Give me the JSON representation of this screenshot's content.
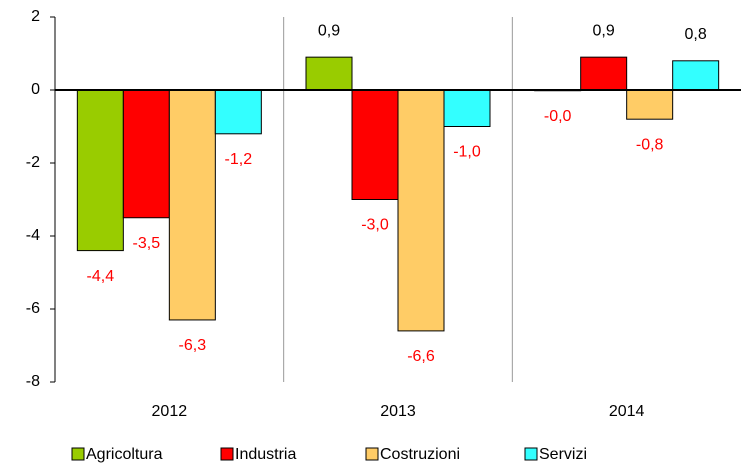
{
  "chart_data": {
    "type": "bar",
    "categories": [
      "2012",
      "2013",
      "2014"
    ],
    "series": [
      {
        "name": "Agricoltura",
        "color": "#99cc00",
        "values": [
          -4.4,
          0.9,
          -0.02
        ],
        "value_labels": [
          "-4,4",
          "0,9",
          "-0,0"
        ]
      },
      {
        "name": "Industria",
        "color": "#ff0000",
        "values": [
          -3.5,
          -3.0,
          0.9
        ],
        "value_labels": [
          "-3,5",
          "-3,0",
          "0,9"
        ]
      },
      {
        "name": "Costruzioni",
        "color": "#ffcc66",
        "values": [
          -6.3,
          -6.6,
          -0.8
        ],
        "value_labels": [
          "-6,3",
          "-6,6",
          "-0,8"
        ]
      },
      {
        "name": "Servizi",
        "color": "#33ffff",
        "values": [
          -1.2,
          -1.0,
          0.8
        ],
        "value_labels": [
          "-1,2",
          "-1,0",
          "0,8"
        ]
      }
    ],
    "ylim": [
      -8,
      2
    ],
    "yticks": [
      -8,
      -6,
      -4,
      -2,
      0,
      2
    ],
    "negative_label_color": "#ff0000",
    "positive_label_color": "#000000",
    "legend": "bottom"
  }
}
